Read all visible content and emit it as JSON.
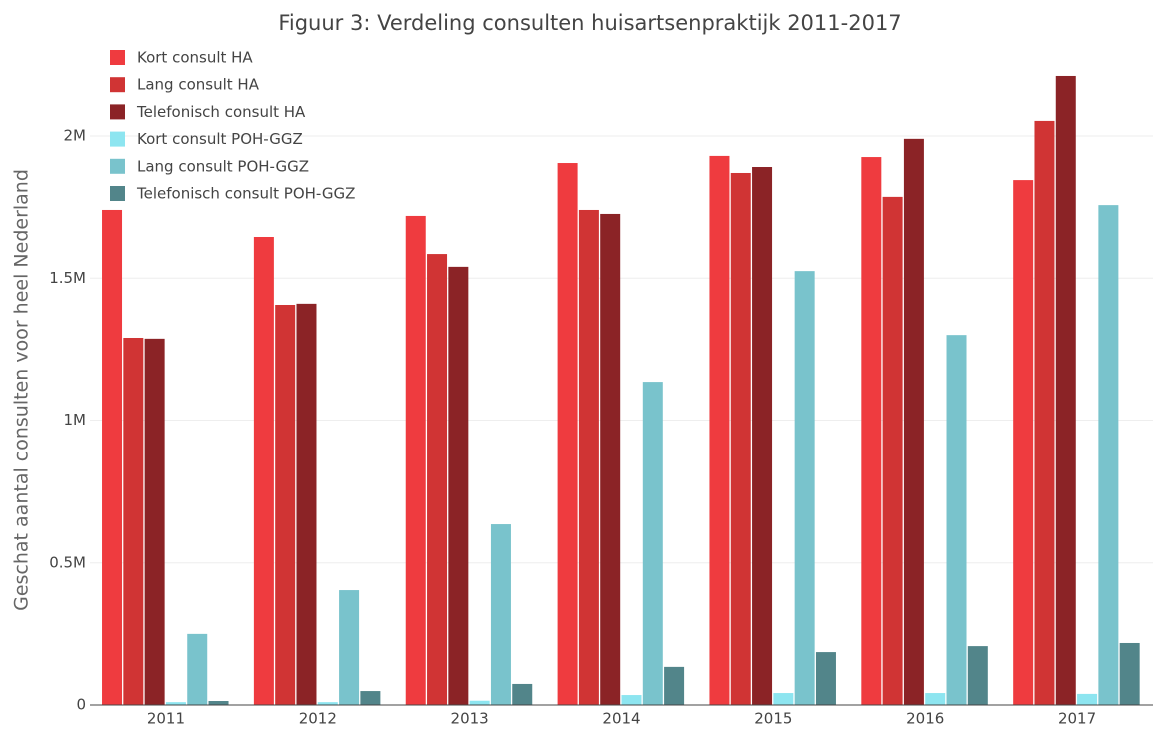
{
  "chart_data": {
    "type": "bar",
    "title": "Figuur 3: Verdeling consulten huisartsenpraktijk 2011-2017",
    "y_label": "Geschat aantal consulten voor heel Nederland",
    "categories": [
      "2011",
      "2012",
      "2013",
      "2014",
      "2015",
      "2016",
      "2017"
    ],
    "series": [
      {
        "name": "Kort consult HA",
        "color": "#ef3b3f",
        "values": [
          1740000,
          1645000,
          1719000,
          1905000,
          1930000,
          1926000,
          1845000
        ]
      },
      {
        "name": "Lang consult HA",
        "color": "#d03434",
        "values": [
          1290000,
          1406000,
          1585000,
          1740000,
          1870000,
          1786000,
          2053000
        ]
      },
      {
        "name": "Telefonisch consult HA",
        "color": "#8b2326",
        "values": [
          1287000,
          1410000,
          1540000,
          1726000,
          1891000,
          1990000,
          2211000
        ]
      },
      {
        "name": "Kort consult POH-GGZ",
        "color": "#8de5f0",
        "values": [
          10000,
          10000,
          15000,
          35000,
          42000,
          42000,
          39000
        ]
      },
      {
        "name": "Lang consult POH-GGZ",
        "color": "#79c3cc",
        "values": [
          250000,
          404000,
          636000,
          1135000,
          1525000,
          1300000,
          1757000
        ]
      },
      {
        "name": "Telefonisch consult POH-GGZ",
        "color": "#52858a",
        "values": [
          14000,
          49000,
          74000,
          134000,
          186000,
          207000,
          218000
        ]
      }
    ],
    "ylim": [
      0,
      2350000
    ],
    "yticks": [
      0,
      {
        "value": 500000,
        "label": "0.5M"
      },
      {
        "value": 1000000,
        "label": "1M"
      },
      {
        "value": 1500000,
        "label": "1.5M"
      },
      {
        "value": 2000000,
        "label": "2M"
      }
    ],
    "grid": true,
    "legend": "top-left"
  }
}
